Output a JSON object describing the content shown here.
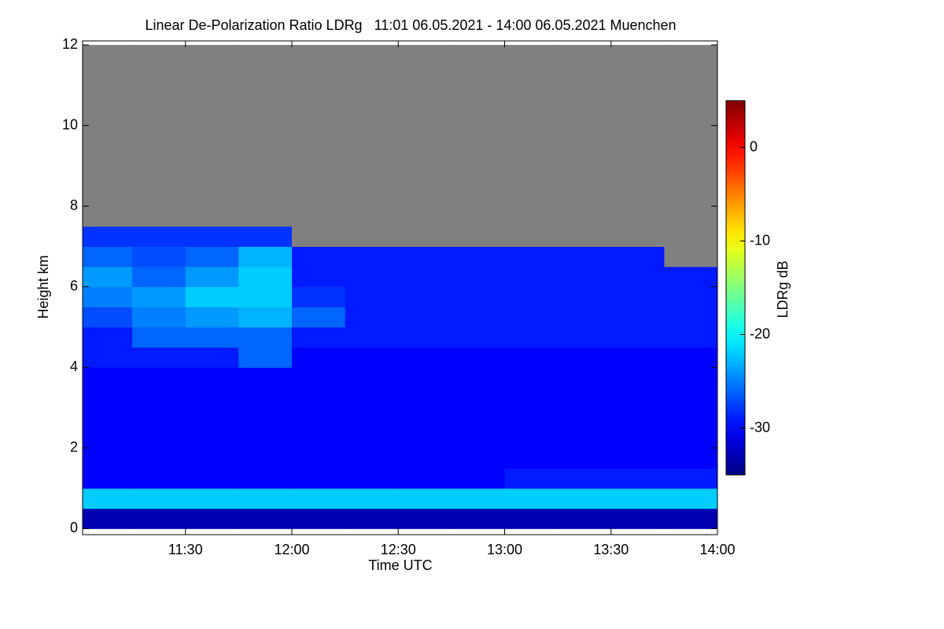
{
  "chart_data": {
    "type": "heatmap",
    "title": "Linear De-Polarization Ratio LDRg   11:01 06.05.2021 - 14:00 06.05.2021 Muenchen",
    "x_label": "Time UTC",
    "y_label": "Height km",
    "colorbar_label": "LDRg dB",
    "xlim": [
      661,
      840
    ],
    "xticks": [
      {
        "value": 690,
        "label": "11:30"
      },
      {
        "value": 720,
        "label": "12:00"
      },
      {
        "value": 750,
        "label": "12:30"
      },
      {
        "value": 780,
        "label": "13:00"
      },
      {
        "value": 810,
        "label": "13:30"
      },
      {
        "value": 840,
        "label": "14:00"
      }
    ],
    "ylim": [
      -0.15,
      12.1
    ],
    "yticks": [
      0,
      2,
      4,
      6,
      8,
      10,
      12
    ],
    "zlim": [
      -35,
      5
    ],
    "cticks": [
      0,
      -10,
      -20,
      -30
    ],
    "colormap": "jet",
    "missing_color": "#808080",
    "xbins": [
      660,
      675,
      690,
      705,
      720,
      735,
      750,
      765,
      780,
      795,
      810,
      825,
      840
    ],
    "ybins": [
      0,
      0.5,
      1,
      1.5,
      2,
      2.5,
      3,
      3.5,
      4,
      4.5,
      5,
      5.5,
      6,
      6.5,
      7,
      7.5,
      8,
      8.5,
      9,
      9.5,
      10,
      10.5,
      11,
      11.5,
      12
    ],
    "z": [
      [
        -33,
        -33,
        -33,
        -33,
        -33,
        -33,
        -33,
        -33,
        -33,
        -33,
        -33,
        -33
      ],
      [
        -22,
        -22,
        -22,
        -22,
        -22,
        -22,
        -22,
        -22,
        -22,
        -22,
        -22,
        -22
      ],
      [
        -30,
        -30,
        -30,
        -30,
        -30,
        -30,
        -30,
        -30,
        -29,
        -29,
        -29,
        -29
      ],
      [
        -30,
        -30,
        -30,
        -30,
        -30,
        -30,
        -30,
        -30,
        -30,
        -30,
        -30,
        -30
      ],
      [
        -30,
        -30,
        -30,
        -30,
        -30,
        -30,
        -30,
        -30,
        -30,
        -30,
        -30,
        -30
      ],
      [
        -30,
        -30,
        -30,
        -30,
        -30,
        -30,
        -30,
        -30,
        -30,
        -30,
        -30,
        -30
      ],
      [
        -30,
        -30,
        -30,
        -30,
        -30,
        -30,
        -30,
        -30,
        -30,
        -30,
        -30,
        -30
      ],
      [
        -30,
        -30,
        -30,
        -30,
        -30,
        -30,
        -30,
        -30,
        -30,
        -30,
        -30,
        -30
      ],
      [
        -29,
        -29,
        -29,
        -26,
        -30,
        -30,
        -30,
        -30,
        -30,
        -30,
        -30,
        -30
      ],
      [
        -29,
        -26,
        -26,
        -26,
        -29,
        -29,
        -29,
        -29,
        -29,
        -29,
        -29,
        -29
      ],
      [
        -27,
        -25,
        -24,
        -23,
        -26,
        -29,
        -29,
        -29,
        -29,
        -29,
        -29,
        -29
      ],
      [
        -25,
        -24,
        -22,
        -22,
        -28,
        -29,
        -29,
        -29,
        -29,
        -29,
        -29,
        -29
      ],
      [
        -24,
        -26,
        -24,
        -22,
        -29,
        -29,
        -29,
        -29,
        -29,
        -29,
        -29,
        -29
      ],
      [
        -26,
        -27,
        -26,
        -23,
        -29,
        -29,
        -29,
        -29,
        -29,
        -29,
        -29,
        null
      ],
      [
        -28,
        -28,
        -28,
        -28,
        null,
        null,
        null,
        null,
        null,
        null,
        null,
        null
      ],
      [
        null,
        null,
        null,
        null,
        null,
        null,
        null,
        null,
        null,
        null,
        null,
        null
      ],
      [
        null,
        null,
        null,
        null,
        null,
        null,
        null,
        null,
        null,
        null,
        null,
        null
      ],
      [
        null,
        null,
        null,
        null,
        null,
        null,
        null,
        null,
        null,
        null,
        null,
        null
      ],
      [
        null,
        null,
        null,
        null,
        null,
        null,
        null,
        null,
        null,
        null,
        null,
        null
      ],
      [
        null,
        null,
        null,
        null,
        null,
        null,
        null,
        null,
        null,
        null,
        null,
        null
      ],
      [
        null,
        null,
        null,
        null,
        null,
        null,
        null,
        null,
        null,
        null,
        null,
        null
      ],
      [
        null,
        null,
        null,
        null,
        null,
        null,
        null,
        null,
        null,
        null,
        null,
        null
      ],
      [
        null,
        null,
        null,
        null,
        null,
        null,
        null,
        null,
        null,
        null,
        null,
        null
      ],
      [
        null,
        null,
        null,
        null,
        null,
        null,
        null,
        null,
        null,
        null,
        null,
        null
      ]
    ]
  }
}
